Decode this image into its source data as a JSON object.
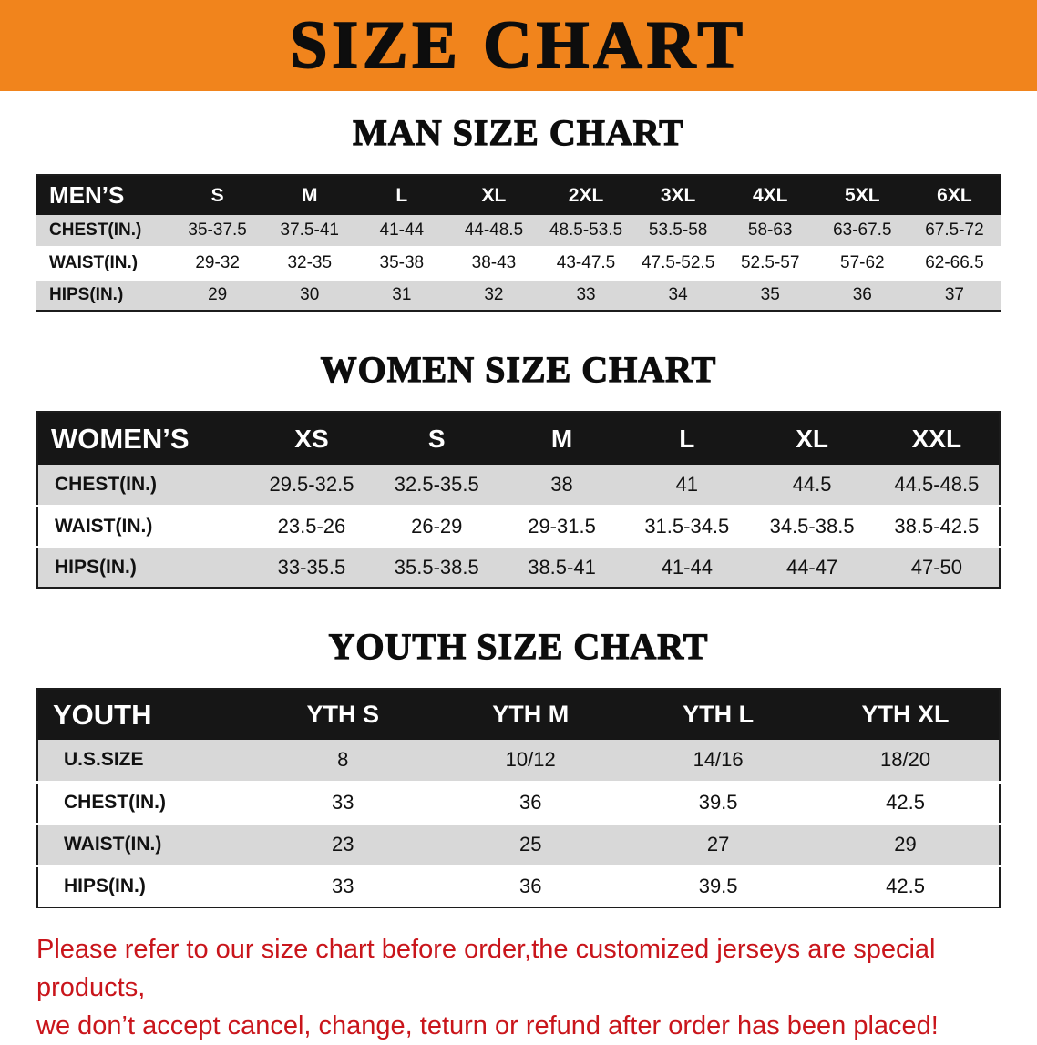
{
  "banner": {
    "title": "SIZE CHART",
    "background_color": "#F1841C"
  },
  "men": {
    "heading": "MAN SIZE CHART",
    "table": {
      "header": [
        "MEN’S",
        "S",
        "M",
        "L",
        "XL",
        "2XL",
        "3XL",
        "4XL",
        "5XL",
        "6XL"
      ],
      "rows": [
        [
          "CHEST(IN.)",
          "35-37.5",
          "37.5-41",
          "41-44",
          "44-48.5",
          "48.5-53.5",
          "53.5-58",
          "58-63",
          "63-67.5",
          "67.5-72"
        ],
        [
          "WAIST(IN.)",
          "29-32",
          "32-35",
          "35-38",
          "38-43",
          "43-47.5",
          "47.5-52.5",
          "52.5-57",
          "57-62",
          "62-66.5"
        ],
        [
          "HIPS(IN.)",
          "29",
          "30",
          "31",
          "32",
          "33",
          "34",
          "35",
          "36",
          "37"
        ]
      ]
    }
  },
  "women": {
    "heading": "WOMEN SIZE CHART",
    "table": {
      "header": [
        "WOMEN’S",
        "XS",
        "S",
        "M",
        "L",
        "XL",
        "XXL"
      ],
      "rows": [
        [
          "CHEST(IN.)",
          "29.5-32.5",
          "32.5-35.5",
          "38",
          "41",
          "44.5",
          "44.5-48.5"
        ],
        [
          "WAIST(IN.)",
          "23.5-26",
          "26-29",
          "29-31.5",
          "31.5-34.5",
          "34.5-38.5",
          "38.5-42.5"
        ],
        [
          "HIPS(IN.)",
          "33-35.5",
          "35.5-38.5",
          "38.5-41",
          "41-44",
          "44-47",
          "47-50"
        ]
      ]
    }
  },
  "youth": {
    "heading": "YOUTH SIZE CHART",
    "table": {
      "header": [
        "YOUTH",
        "YTH S",
        "YTH M",
        "YTH L",
        "YTH XL"
      ],
      "rows": [
        [
          "U.S.SIZE",
          "8",
          "10/12",
          "14/16",
          "18/20"
        ],
        [
          "CHEST(IN.)",
          "33",
          "36",
          "39.5",
          "42.5"
        ],
        [
          "WAIST(IN.)",
          "23",
          "25",
          "27",
          "29"
        ],
        [
          "HIPS(IN.)",
          "33",
          "36",
          "39.5",
          "42.5"
        ]
      ]
    }
  },
  "disclaimer": {
    "line1": "Please refer to our size chart before order,the customized jerseys are special products,",
    "line2": "we don’t accept cancel, change, teturn or refund after order has been placed!",
    "text_color": "#C9151B"
  }
}
